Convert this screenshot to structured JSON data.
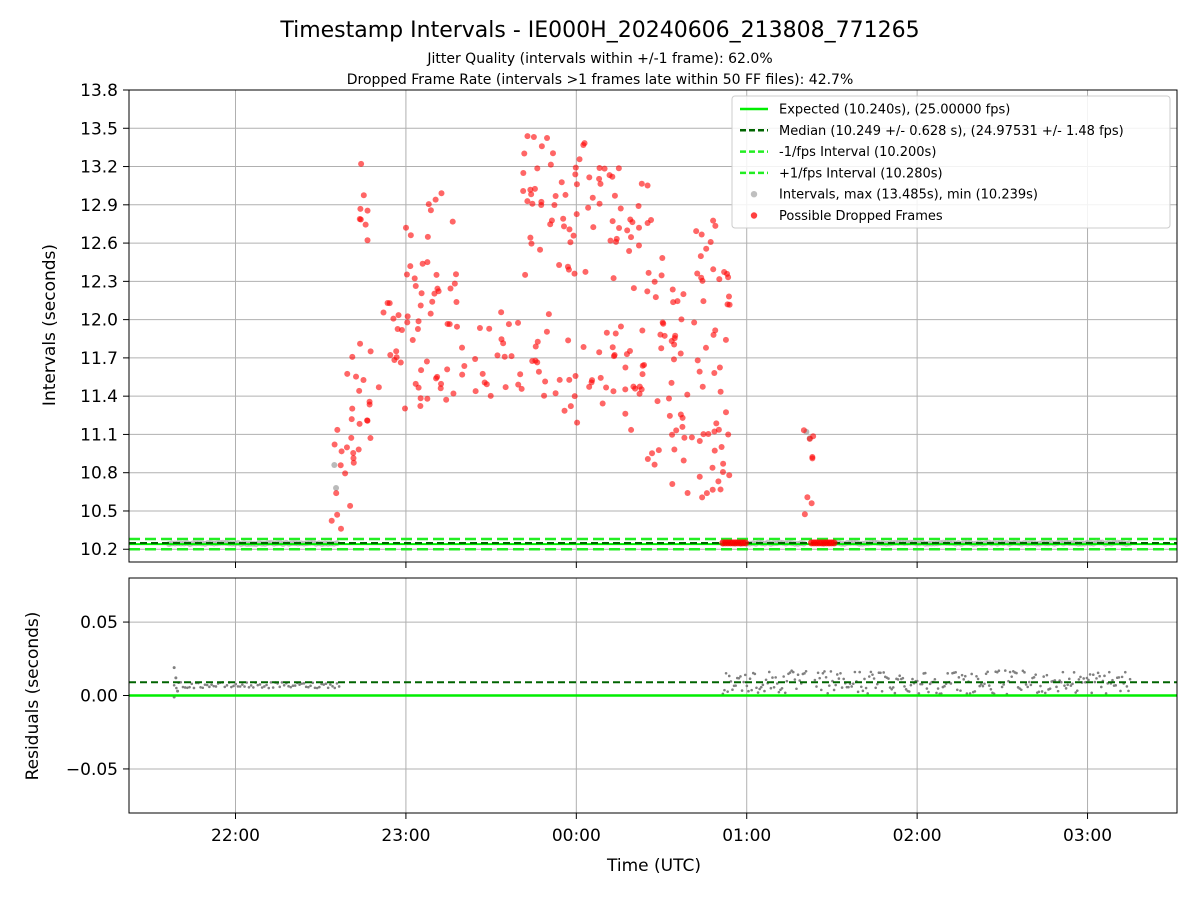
{
  "chart_data": [
    {
      "type": "scatter",
      "title": "Timestamp Intervals - IE000H_20240606_213808_771265",
      "subtitle_lines": [
        "Jitter Quality (intervals within +/-1 frame): 62.0%",
        "Dropped Frame Rate (intervals >1 frames late within 50 FF files): 42.7%"
      ],
      "xlabel": "",
      "ylabel": "Intervals (seconds)",
      "x_unit": "hours since 21:00 UTC",
      "xlim": [
        0.375,
        6.525
      ],
      "ylim": [
        10.1,
        13.8
      ],
      "yticks": [
        "10.2",
        "10.5",
        "10.8",
        "11.1",
        "11.4",
        "11.7",
        "12.0",
        "12.3",
        "12.6",
        "12.9",
        "13.2",
        "13.5",
        "13.8"
      ],
      "grid": true,
      "legend_position": "top-right",
      "legend": [
        "Expected (10.240s), (25.00000 fps)",
        "Median (10.249 +/- 0.628 s), (24.97531 +/- 1.48 fps)",
        "-1/fps Interval (10.200s)",
        "+1/fps Interval (10.280s)",
        "Intervals, max (13.485s), min (10.239s)",
        "Possible Dropped Frames"
      ],
      "reference_lines": {
        "expected": 10.24,
        "median": 10.249,
        "minus_one_frame": 10.2,
        "plus_one_frame": 10.28
      },
      "series": [
        {
          "name": "Intervals, max (13.485s), min (10.239s)",
          "segments": [
            {
              "x_start": 0.61,
              "x_end": 1.61,
              "y": 10.246
            },
            {
              "x_start": 3.86,
              "x_end": 4.35,
              "y": 10.248
            },
            {
              "x_start": 4.45,
              "x_end": 6.25,
              "y": 10.248
            }
          ],
          "points": [
            [
              1.59,
              10.68
            ],
            [
              1.58,
              10.86
            ],
            [
              4.35,
              11.12
            ],
            [
              4.37,
              11.07
            ]
          ]
        },
        {
          "name": "Possible Dropped Frames",
          "bands": [
            {
              "x_start": 1.56,
              "x_end": 1.72,
              "y_low": 10.32,
              "y_high": 11.25
            },
            {
              "x_start": 1.65,
              "x_end": 1.85,
              "y_low": 10.9,
              "y_high": 11.95
            },
            {
              "x_start": 1.72,
              "x_end": 1.78,
              "y_low": 12.5,
              "y_high": 13.28
            },
            {
              "x_start": 1.85,
              "x_end": 2.4,
              "y_low": 11.3,
              "y_high": 12.15
            },
            {
              "x_start": 2.0,
              "x_end": 2.3,
              "y_low": 12.2,
              "y_high": 13.0
            },
            {
              "x_start": 2.4,
              "x_end": 2.9,
              "y_low": 11.4,
              "y_high": 12.1
            },
            {
              "x_start": 2.65,
              "x_end": 3.05,
              "y_low": 12.3,
              "y_high": 13.49
            },
            {
              "x_start": 2.9,
              "x_end": 3.4,
              "y_low": 11.1,
              "y_high": 11.95
            },
            {
              "x_start": 3.05,
              "x_end": 3.45,
              "y_low": 12.2,
              "y_high": 13.2
            },
            {
              "x_start": 3.4,
              "x_end": 3.9,
              "y_low": 10.6,
              "y_high": 11.5
            },
            {
              "x_start": 3.45,
              "x_end": 3.9,
              "y_low": 11.5,
              "y_high": 12.5
            },
            {
              "x_start": 3.7,
              "x_end": 3.88,
              "y_low": 12.3,
              "y_high": 12.85
            },
            {
              "x_start": 4.33,
              "x_end": 4.39,
              "y_low": 10.45,
              "y_high": 11.18
            }
          ],
          "low_points": [
            {
              "x_start": 3.86,
              "x_end": 4.0,
              "y": 10.25
            },
            {
              "x_start": 4.38,
              "x_end": 4.52,
              "y": 10.25
            }
          ]
        }
      ]
    },
    {
      "type": "scatter",
      "title": "",
      "xlabel": "Time (UTC)",
      "ylabel": "Residuals (seconds)",
      "xlim": [
        0.375,
        6.525
      ],
      "ylim": [
        -0.08,
        0.08
      ],
      "xticks": [
        {
          "value": 1,
          "label": "22:00"
        },
        {
          "value": 2,
          "label": "23:00"
        },
        {
          "value": 3,
          "label": "00:00"
        },
        {
          "value": 4,
          "label": "01:00"
        },
        {
          "value": 5,
          "label": "02:00"
        },
        {
          "value": 6,
          "label": "03:00"
        }
      ],
      "yticks": [
        {
          "value": 0.05,
          "label": "0.05"
        },
        {
          "value": 0.0,
          "label": "0.00"
        },
        {
          "value": -0.05,
          "label": "−0.05"
        }
      ],
      "grid": true,
      "reference_lines": {
        "expected": 0.0,
        "median": 0.009
      },
      "series": [
        {
          "name": "residuals",
          "segments": [
            {
              "x_start": 0.64,
              "x_end": 1.61,
              "y_low": 0.005,
              "y_high": 0.009
            },
            {
              "x_start": 3.86,
              "x_end": 4.35,
              "y_low": 0.001,
              "y_high": 0.017
            },
            {
              "x_start": 4.4,
              "x_end": 6.25,
              "y_low": 0.001,
              "y_high": 0.017
            }
          ],
          "points": [
            [
              0.64,
              0.019
            ],
            [
              0.64,
              -0.001
            ],
            [
              0.65,
              0.012
            ],
            [
              0.66,
              0.003
            ]
          ]
        }
      ]
    }
  ],
  "colors": {
    "expected": "#00ee00",
    "median": "#006400",
    "interval_bounds": "#22ee22",
    "intervals": "#a9a9a9",
    "dropped": "#ff0000",
    "residual_points": "#808080",
    "grid": "#b0b0b0"
  }
}
